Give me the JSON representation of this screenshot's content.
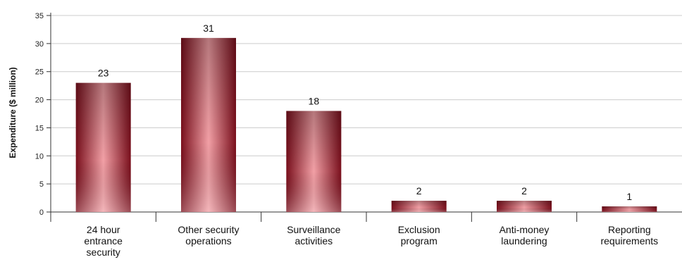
{
  "chart_data": {
    "type": "bar",
    "title": "",
    "xlabel": "",
    "ylabel": "Expenditure ($ million)",
    "categories": [
      [
        "24 hour",
        "entrance",
        "security"
      ],
      [
        "Other security",
        "operations"
      ],
      [
        "Surveillance",
        "activities"
      ],
      [
        "Exclusion",
        "program"
      ],
      [
        "Anti-money",
        "laundering"
      ],
      [
        "Reporting",
        "requirements"
      ]
    ],
    "values": [
      23,
      31,
      18,
      2,
      2,
      1
    ],
    "data_labels": [
      "23",
      "31",
      "18",
      "2",
      "2",
      "1"
    ],
    "ylim": [
      0,
      35
    ],
    "yticks": [
      0,
      5,
      10,
      15,
      20,
      25,
      30,
      35
    ],
    "grid": true,
    "legend": "none",
    "colors": {
      "bar_edge": "#7a0f1c",
      "bar_center": "#f2a0a6",
      "bar_mid": "#a3283a",
      "grid": "#cccccc",
      "axis": "#333333"
    }
  }
}
